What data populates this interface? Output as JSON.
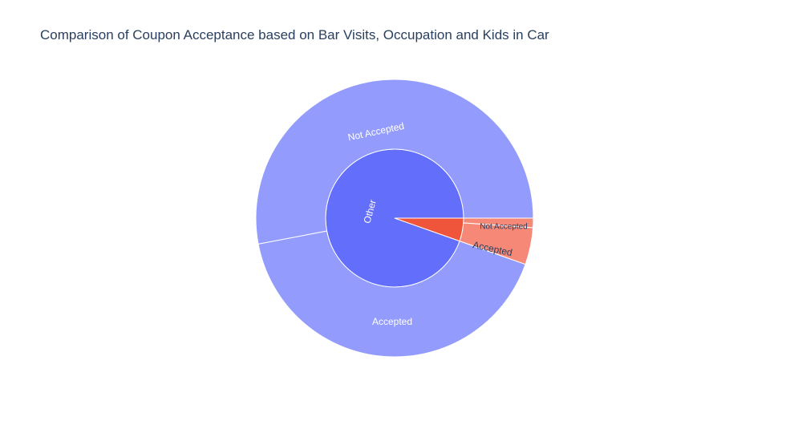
{
  "chart_data": {
    "type": "sunburst",
    "title": "Comparison of Coupon Acceptance based on Bar Visits, Occupation and Kids in Car",
    "inner_ring": [
      {
        "label": "Other",
        "value": 0.946,
        "color": "#636efa"
      },
      {
        "label": "",
        "value": 0.054,
        "color": "#ef553b"
      }
    ],
    "outer_ring": [
      {
        "label": "Not Accepted",
        "parent": "Other",
        "value": 0.53,
        "color": "#939cfc"
      },
      {
        "label": "Accepted",
        "parent": "Other",
        "value": 0.416,
        "color": "#939cfc"
      },
      {
        "label": "Accepted",
        "parent": "",
        "value": 0.043,
        "color": "#f58877"
      },
      {
        "label": "Not Accepted",
        "parent": "",
        "value": 0.011,
        "color": "#f58877"
      }
    ]
  }
}
